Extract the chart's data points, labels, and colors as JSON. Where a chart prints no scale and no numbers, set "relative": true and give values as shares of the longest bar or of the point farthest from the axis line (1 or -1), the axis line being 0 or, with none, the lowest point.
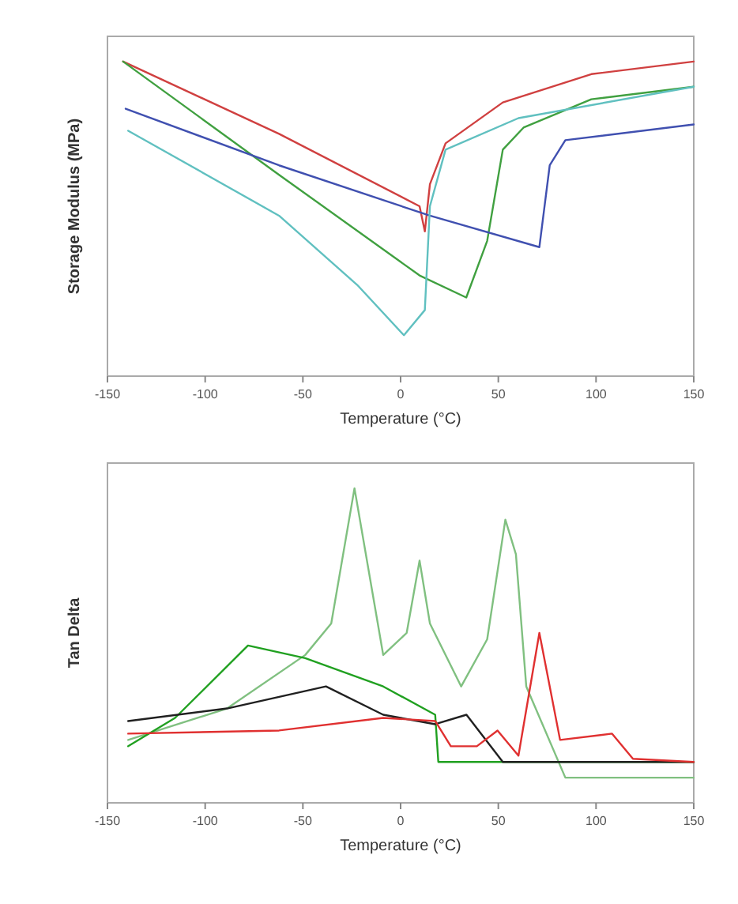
{
  "chart_data": [
    {
      "type": "line",
      "relative": true,
      "xlabel": "Temperature (°C)",
      "ylabel": "Storage Modulus (MPa)",
      "xlim": [
        -150,
        150
      ],
      "xticks": [
        -150,
        -100,
        -50,
        0,
        50,
        100,
        150
      ],
      "grid": false,
      "series": [
        {
          "color": "#d04040",
          "x": [
            -142,
            -62.2,
            9.7,
            12.4,
            15.0,
            23.0,
            52.3,
            97.6,
            150
          ],
          "values": [
            1.0,
            0.77,
            0.54,
            0.46,
            0.61,
            0.74,
            0.87,
            0.96,
            1.0
          ]
        },
        {
          "color": "#40a040",
          "x": [
            -142,
            -62.2,
            9.7,
            33.6,
            44.3,
            52.3,
            62.9,
            97.6,
            150
          ],
          "values": [
            1.0,
            0.64,
            0.32,
            0.25,
            0.43,
            0.72,
            0.79,
            0.88,
            0.92
          ]
        },
        {
          "color": "#4050b0",
          "x": [
            -140.7,
            -62.2,
            15.0,
            71.0,
            76.3,
            84.3,
            150
          ],
          "values": [
            0.85,
            0.67,
            0.51,
            0.41,
            0.67,
            0.75,
            0.8
          ]
        },
        {
          "color": "#60c0c0",
          "x": [
            -139.4,
            -62.2,
            -22.2,
            1.7,
            12.4,
            15.0,
            23.0,
            60.3,
            150
          ],
          "values": [
            0.78,
            0.51,
            0.29,
            0.13,
            0.21,
            0.54,
            0.72,
            0.82,
            0.92
          ]
        }
      ]
    },
    {
      "type": "line",
      "relative": true,
      "xlabel": "Temperature (°C)",
      "ylabel": "Tan Delta",
      "xlim": [
        -150,
        150
      ],
      "xticks": [
        -150,
        -100,
        -50,
        0,
        50,
        100,
        150
      ],
      "grid": false,
      "series": [
        {
          "color": "#80c080",
          "x": [
            -139.4,
            -88.8,
            -48.8,
            -35.5,
            -23.6,
            -8.9,
            3.1,
            9.7,
            15.0,
            31.0,
            44.3,
            53.6,
            59.0,
            64.3,
            84.3,
            150
          ],
          "values": [
            0.2,
            0.3,
            0.47,
            0.57,
            1.0,
            0.47,
            0.54,
            0.77,
            0.57,
            0.37,
            0.52,
            0.9,
            0.79,
            0.37,
            0.08,
            0.08
          ]
        },
        {
          "color": "#20a020",
          "x": [
            -139.4,
            -115.4,
            -78.1,
            -48.8,
            -8.9,
            17.7,
            19.3,
            150
          ],
          "values": [
            0.18,
            0.27,
            0.5,
            0.46,
            0.37,
            0.28,
            0.13,
            0.13
          ]
        },
        {
          "color": "#202020",
          "x": [
            -139.4,
            -88.8,
            -38.2,
            -8.9,
            17.7,
            33.7,
            52.3,
            150
          ],
          "values": [
            0.26,
            0.3,
            0.37,
            0.28,
            0.25,
            0.28,
            0.13,
            0.13
          ]
        },
        {
          "color": "#e03030",
          "x": [
            -139.4,
            -62.2,
            -8.9,
            17.7,
            25.7,
            39.0,
            49.6,
            60.3,
            71.0,
            81.6,
            108.2,
            118.9,
            150
          ],
          "values": [
            0.22,
            0.23,
            0.27,
            0.26,
            0.18,
            0.18,
            0.23,
            0.15,
            0.54,
            0.2,
            0.22,
            0.14,
            0.13
          ]
        }
      ]
    }
  ]
}
